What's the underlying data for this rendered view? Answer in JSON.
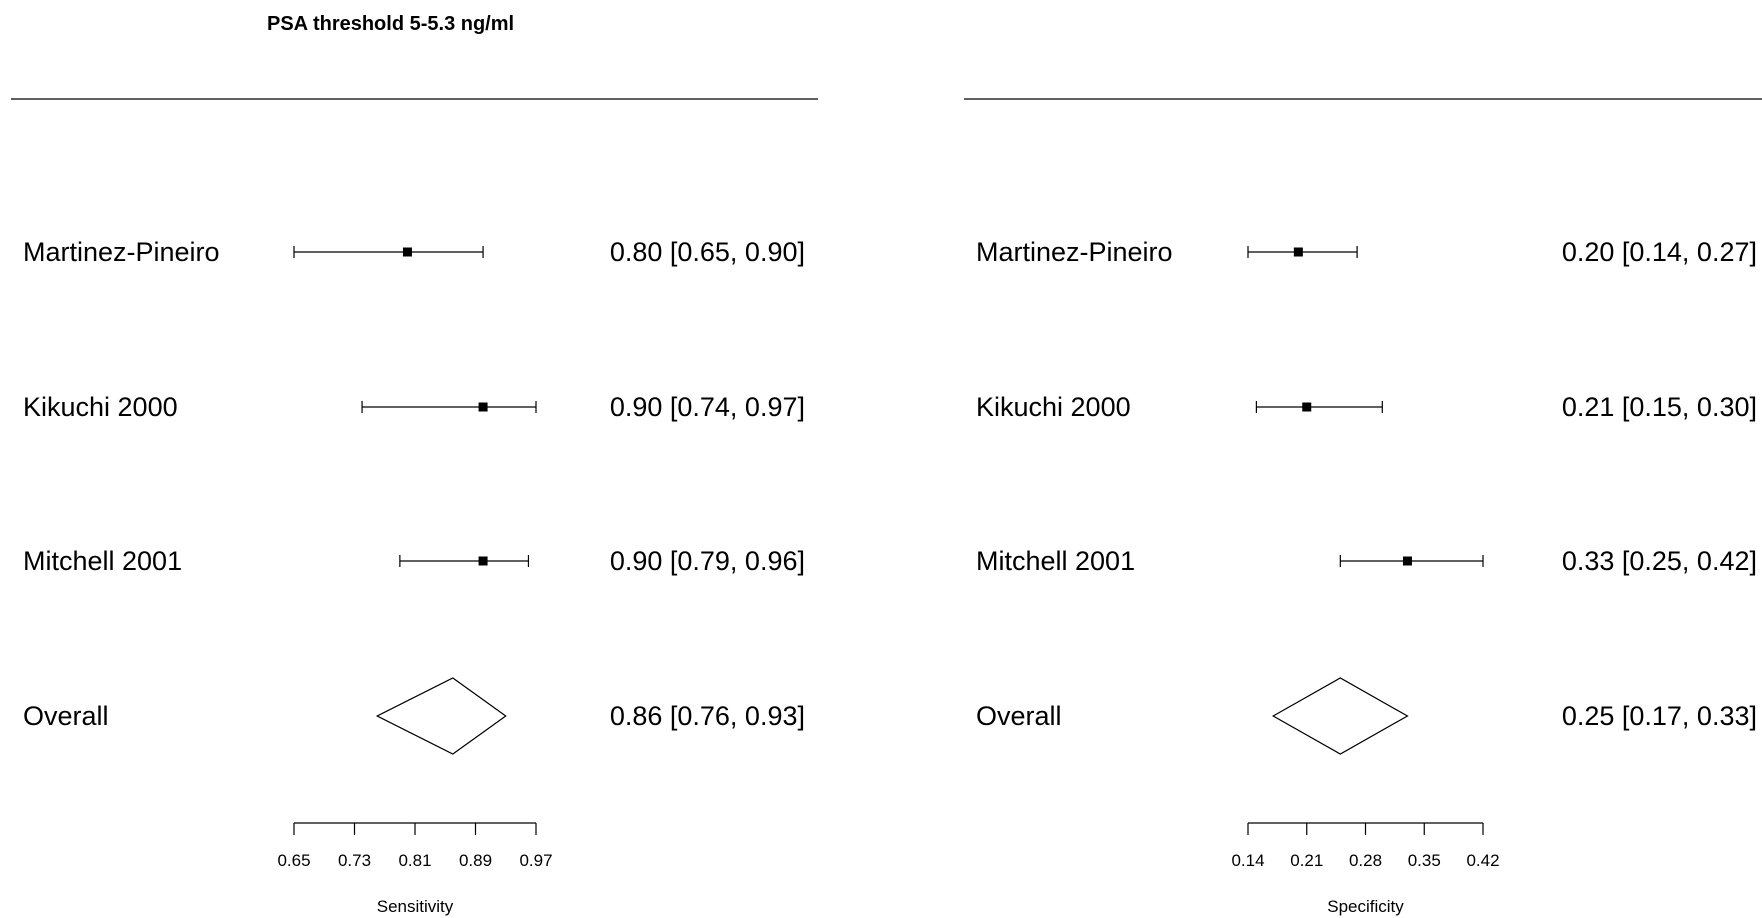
{
  "title": "PSA threshold 5-5.3 ng/ml",
  "chart_data": [
    {
      "type": "forest",
      "panel": "sensitivity",
      "xlabel": "Sensitivity",
      "xlim": [
        0.65,
        0.97
      ],
      "ticks": [
        "0.65",
        "0.73",
        "0.81",
        "0.89",
        "0.97"
      ],
      "studies": [
        {
          "name": "Martinez-Pineiro",
          "est": 0.8,
          "lo": 0.65,
          "hi": 0.9,
          "label": "0.80 [0.65, 0.90]"
        },
        {
          "name": "Kikuchi 2000",
          "est": 0.9,
          "lo": 0.74,
          "hi": 0.97,
          "label": "0.90 [0.74, 0.97]"
        },
        {
          "name": "Mitchell 2001",
          "est": 0.9,
          "lo": 0.79,
          "hi": 0.96,
          "label": "0.90 [0.79, 0.96]"
        }
      ],
      "overall": {
        "name": "Overall",
        "est": 0.86,
        "lo": 0.76,
        "hi": 0.93,
        "label": "0.86 [0.76, 0.93]"
      }
    },
    {
      "type": "forest",
      "panel": "specificity",
      "xlabel": "Specificity",
      "xlim": [
        0.14,
        0.42
      ],
      "ticks": [
        "0.14",
        "0.21",
        "0.28",
        "0.35",
        "0.42"
      ],
      "studies": [
        {
          "name": "Martinez-Pineiro",
          "est": 0.2,
          "lo": 0.14,
          "hi": 0.27,
          "label": "0.20 [0.14, 0.27]"
        },
        {
          "name": "Kikuchi 2000",
          "est": 0.21,
          "lo": 0.15,
          "hi": 0.3,
          "label": "0.21 [0.15, 0.30]"
        },
        {
          "name": "Mitchell 2001",
          "est": 0.33,
          "lo": 0.25,
          "hi": 0.42,
          "label": "0.33 [0.25, 0.42]"
        }
      ],
      "overall": {
        "name": "Overall",
        "est": 0.25,
        "lo": 0.17,
        "hi": 0.33,
        "label": "0.25 [0.17, 0.33]"
      }
    }
  ]
}
